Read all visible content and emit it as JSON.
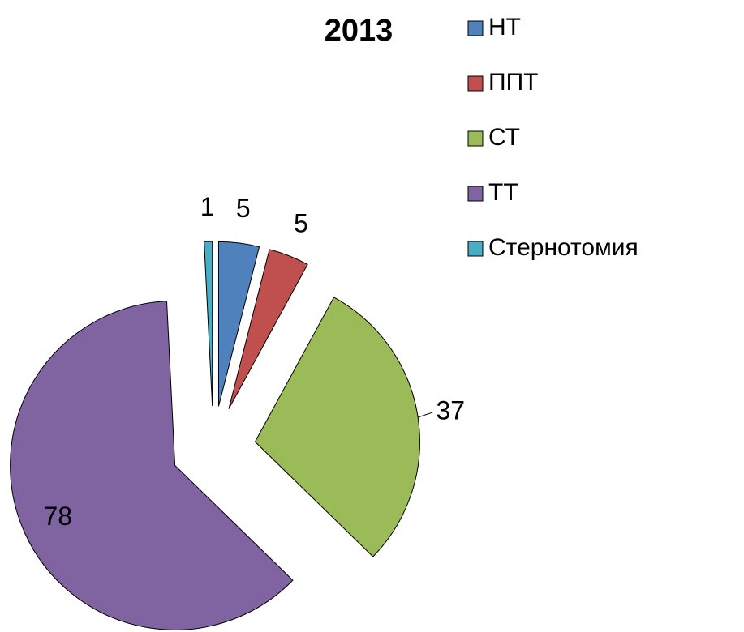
{
  "chart_data": {
    "type": "pie",
    "title": "2013",
    "categories": [
      "НТ",
      "ППТ",
      "СТ",
      "ТТ",
      "Стернотомия"
    ],
    "values": [
      5,
      5,
      37,
      78,
      1
    ],
    "colors": [
      "#4f81bd",
      "#c0504d",
      "#9bbb59",
      "#8064a2",
      "#4bacc6"
    ],
    "legend": "right"
  }
}
